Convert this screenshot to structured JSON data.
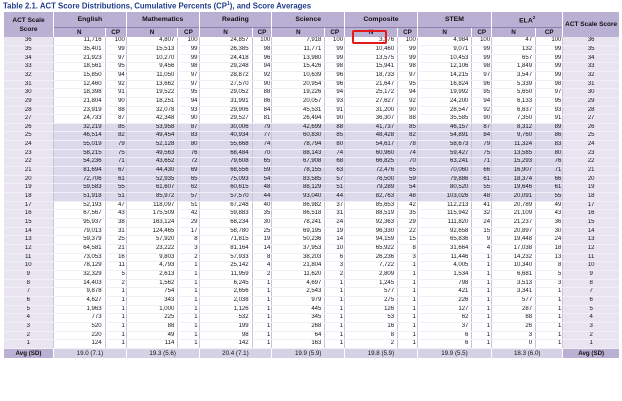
{
  "title": {
    "text": "Table 2.1.  ACT Score Distributions, Cumulative Percents (CP",
    "sup": "1",
    "suffix": "), and Score Averages"
  },
  "header": {
    "score_label": "ACT Scale Score",
    "groups": [
      "English",
      "Mathematics",
      "Reading",
      "Science",
      "Composite",
      "STEM",
      "ELA"
    ],
    "ela_sup": "2",
    "n_label": "N",
    "cp_label": "CP"
  },
  "rows": [
    {
      "score": "36",
      "v": [
        "11,716",
        "100",
        "4,807",
        "100",
        "24,857",
        "100",
        "7,918",
        "100",
        "3,376",
        "100",
        "4,984",
        "100",
        "47",
        "100"
      ]
    },
    {
      "score": "35",
      "v": [
        "35,401",
        "99",
        "15,513",
        "99",
        "26,385",
        "98",
        "11,771",
        "99",
        "10,460",
        "99",
        "9,071",
        "99",
        "132",
        "99"
      ]
    },
    {
      "score": "34",
      "v": [
        "21,923",
        "97",
        "10,270",
        "99",
        "24,418",
        "96",
        "13,980",
        "99",
        "13,575",
        "99",
        "10,453",
        "99",
        "657",
        "99"
      ]
    },
    {
      "score": "33",
      "v": [
        "18,561",
        "95",
        "9,456",
        "98",
        "29,248",
        "94",
        "15,426",
        "98",
        "15,941",
        "98",
        "12,106",
        "98",
        "1,849",
        "99"
      ]
    },
    {
      "score": "32",
      "v": [
        "15,850",
        "94",
        "11,050",
        "97",
        "28,872",
        "92",
        "10,639",
        "96",
        "18,733",
        "97",
        "14,215",
        "97",
        "3,547",
        "99"
      ]
    },
    {
      "score": "31",
      "v": [
        "12,460",
        "92",
        "13,662",
        "97",
        "27,570",
        "90",
        "20,954",
        "96",
        "21,647",
        "95",
        "16,824",
        "96",
        "5,339",
        "98"
      ]
    },
    {
      "score": "30",
      "v": [
        "18,398",
        "91",
        "19,522",
        "95",
        "29,052",
        "88",
        "19,226",
        "94",
        "25,172",
        "94",
        "19,992",
        "95",
        "5,650",
        "97"
      ]
    },
    {
      "score": "29",
      "v": [
        "21,804",
        "90",
        "18,251",
        "94",
        "31,991",
        "86",
        "20,057",
        "93",
        "27,627",
        "92",
        "24,200",
        "94",
        "6,133",
        "95"
      ]
    },
    {
      "score": "28",
      "v": [
        "23,919",
        "88",
        "32,078",
        "93",
        "29,906",
        "84",
        "45,531",
        "91",
        "31,200",
        "90",
        "28,547",
        "92",
        "6,637",
        "93"
      ]
    },
    {
      "score": "27",
      "v": [
        "24,733",
        "87",
        "42,348",
        "90",
        "29,527",
        "81",
        "26,494",
        "90",
        "36,307",
        "88",
        "35,585",
        "90",
        "7,350",
        "91"
      ]
    },
    {
      "score": "26",
      "v": [
        "32,219",
        "85",
        "53,958",
        "87",
        "30,006",
        "79",
        "42,699",
        "88",
        "41,737",
        "85",
        "46,157",
        "87",
        "8,312",
        "89"
      ]
    },
    {
      "score": "25",
      "v": [
        "46,514",
        "82",
        "49,454",
        "83",
        "40,934",
        "77",
        "60,830",
        "85",
        "48,428",
        "82",
        "54,891",
        "84",
        "9,760",
        "86"
      ]
    },
    {
      "score": "24",
      "v": [
        "55,019",
        "79",
        "52,128",
        "80",
        "55,668",
        "74",
        "78,794",
        "80",
        "54,617",
        "78",
        "58,673",
        "79",
        "11,324",
        "83"
      ]
    },
    {
      "score": "23",
      "v": [
        "58,215",
        "75",
        "49,563",
        "76",
        "68,484",
        "70",
        "88,143",
        "74",
        "60,960",
        "74",
        "59,427",
        "75",
        "13,585",
        "80"
      ]
    },
    {
      "score": "22",
      "v": [
        "54,236",
        "71",
        "43,652",
        "72",
        "79,608",
        "65",
        "67,908",
        "68",
        "66,825",
        "70",
        "63,241",
        "71",
        "15,293",
        "76"
      ]
    },
    {
      "score": "21",
      "v": [
        "81,694",
        "67",
        "44,430",
        "69",
        "68,556",
        "59",
        "78,155",
        "63",
        "72,476",
        "65",
        "70,060",
        "66",
        "16,907",
        "71"
      ]
    },
    {
      "score": "20",
      "v": [
        "72,706",
        "61",
        "52,935",
        "65",
        "75,093",
        "54",
        "83,585",
        "57",
        "76,500",
        "59",
        "79,886",
        "61",
        "18,374",
        "66"
      ]
    },
    {
      "score": "19",
      "v": [
        "59,583",
        "55",
        "61,607",
        "62",
        "60,615",
        "48",
        "88,129",
        "51",
        "79,289",
        "54",
        "80,520",
        "55",
        "19,646",
        "61"
      ]
    },
    {
      "score": "18",
      "v": [
        "51,918",
        "51",
        "85,972",
        "57",
        "57,570",
        "44",
        "93,040",
        "44",
        "82,763",
        "48",
        "103,026",
        "48",
        "20,091",
        "55"
      ]
    },
    {
      "score": "17",
      "v": [
        "52,193",
        "47",
        "118,097",
        "51",
        "67,248",
        "40",
        "86,982",
        "37",
        "85,653",
        "42",
        "112,213",
        "41",
        "20,789",
        "49"
      ]
    },
    {
      "score": "16",
      "v": [
        "67,567",
        "43",
        "175,509",
        "42",
        "59,883",
        "35",
        "86,518",
        "31",
        "88,519",
        "35",
        "115,942",
        "32",
        "21,109",
        "43"
      ]
    },
    {
      "score": "15",
      "v": [
        "95,937",
        "38",
        "163,124",
        "29",
        "68,234",
        "30",
        "78,241",
        "24",
        "92,363",
        "29",
        "111,820",
        "24",
        "21,237",
        "36"
      ]
    },
    {
      "score": "14",
      "v": [
        "79,013",
        "31",
        "124,465",
        "17",
        "58,780",
        "25",
        "69,195",
        "19",
        "96,330",
        "22",
        "92,658",
        "15",
        "20,897",
        "30"
      ]
    },
    {
      "score": "13",
      "v": [
        "59,379",
        "25",
        "57,920",
        "8",
        "71,815",
        "19",
        "50,236",
        "14",
        "94,159",
        "15",
        "65,836",
        "9",
        "19,448",
        "24"
      ]
    },
    {
      "score": "12",
      "v": [
        "64,581",
        "21",
        "23,222",
        "3",
        "81,164",
        "14",
        "37,953",
        "10",
        "65,922",
        "8",
        "31,664",
        "4",
        "17,038",
        "18"
      ]
    },
    {
      "score": "11",
      "v": [
        "73,053",
        "16",
        "9,803",
        "2",
        "57,933",
        "8",
        "38,203",
        "6",
        "26,236",
        "3",
        "11,446",
        "1",
        "14,232",
        "13"
      ]
    },
    {
      "score": "10",
      "v": [
        "78,129",
        "11",
        "4,793",
        "1",
        "25,142",
        "4",
        "21,804",
        "3",
        "7,722",
        "1",
        "4,005",
        "1",
        "10,340",
        "8"
      ]
    },
    {
      "score": "9",
      "v": [
        "32,329",
        "5",
        "2,613",
        "1",
        "11,959",
        "2",
        "11,620",
        "2",
        "2,809",
        "1",
        "1,534",
        "1",
        "6,681",
        "5"
      ]
    },
    {
      "score": "8",
      "v": [
        "14,403",
        "2",
        "1,562",
        "1",
        "6,245",
        "1",
        "4,697",
        "1",
        "1,245",
        "1",
        "798",
        "1",
        "3,513",
        "3"
      ]
    },
    {
      "score": "7",
      "v": [
        "9,878",
        "1",
        "754",
        "1",
        "2,656",
        "1",
        "2,543",
        "1",
        "577",
        "1",
        "421",
        "1",
        "3,341",
        "1"
      ]
    },
    {
      "score": "6",
      "v": [
        "4,627",
        "1",
        "343",
        "1",
        "2,038",
        "1",
        "979",
        "1",
        "275",
        "1",
        "226",
        "1",
        "577",
        "1"
      ]
    },
    {
      "score": "5",
      "v": [
        "1,963",
        "1",
        "1,000",
        "1",
        "1,126",
        "1",
        "445",
        "1",
        "126",
        "1",
        "127",
        "1",
        "287",
        "1"
      ]
    },
    {
      "score": "4",
      "v": [
        "773",
        "1",
        "225",
        "1",
        "532",
        "1",
        "345",
        "1",
        "53",
        "1",
        "62",
        "1",
        "88",
        "1"
      ]
    },
    {
      "score": "3",
      "v": [
        "520",
        "1",
        "88",
        "1",
        "199",
        "1",
        "268",
        "1",
        "16",
        "1",
        "37",
        "1",
        "26",
        "1"
      ]
    },
    {
      "score": "2",
      "v": [
        "220",
        "1",
        "49",
        "1",
        "98",
        "1",
        "64",
        "1",
        "8",
        "1",
        "6",
        "1",
        "3",
        "1"
      ]
    },
    {
      "score": "1",
      "v": [
        "124",
        "1",
        "114",
        "1",
        "142",
        "1",
        "163",
        "1",
        "2",
        "1",
        "6",
        "1",
        "0",
        "1"
      ]
    }
  ],
  "footer": {
    "label": "Avg (SD)",
    "values": [
      "19.0 (7.1)",
      "19.3 (5.6)",
      "20.4 (7.1)",
      "19.9 (5.9)",
      "19.8 (5.9)",
      "19.9 (5.5)",
      "18.3 (6.0)"
    ]
  },
  "colors": {
    "header_bg": "#b9b0d3",
    "score_col_bg": "#e8e5f1",
    "shaded_rows_bg": "#dcd9ea",
    "highlight_border": "#e21a1a",
    "title_color": "#1f3d8c"
  }
}
